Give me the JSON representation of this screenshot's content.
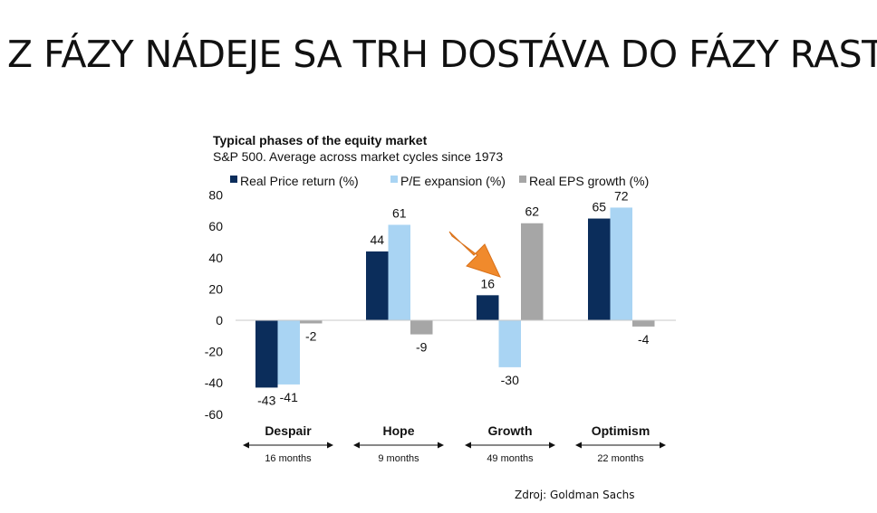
{
  "slide": {
    "title": "Z FÁZY NÁDEJE SA TRH DOSTÁVA DO FÁZY RASTU",
    "source": "Zdroj: Goldman Sachs"
  },
  "chart_data": {
    "type": "bar",
    "title": "Typical phases of the equity market",
    "subtitle": "S&P 500. Average across market cycles since 1973",
    "categories": [
      "Despair",
      "Hope",
      "Growth",
      "Optimism"
    ],
    "durations": [
      "16 months",
      "9 months",
      "49 months",
      "22 months"
    ],
    "series": [
      {
        "name": "Real Price return (%)",
        "color": "#0b2d5b",
        "values": [
          -43,
          44,
          16,
          65
        ]
      },
      {
        "name": "P/E expansion (%)",
        "color": "#a9d4f3",
        "values": [
          -41,
          61,
          -30,
          72
        ]
      },
      {
        "name": "Real EPS growth (%)",
        "color": "#a6a6a6",
        "values": [
          -2,
          -9,
          62,
          -4
        ]
      }
    ],
    "ylim": [
      -60,
      80
    ],
    "yticks": [
      80,
      60,
      40,
      20,
      0,
      -20,
      -40,
      -60
    ],
    "legend_position": "top",
    "grid": false,
    "annotation": {
      "type": "arrow",
      "color": "#f08a2c",
      "target": "Growth - Real Price return (%)"
    }
  }
}
